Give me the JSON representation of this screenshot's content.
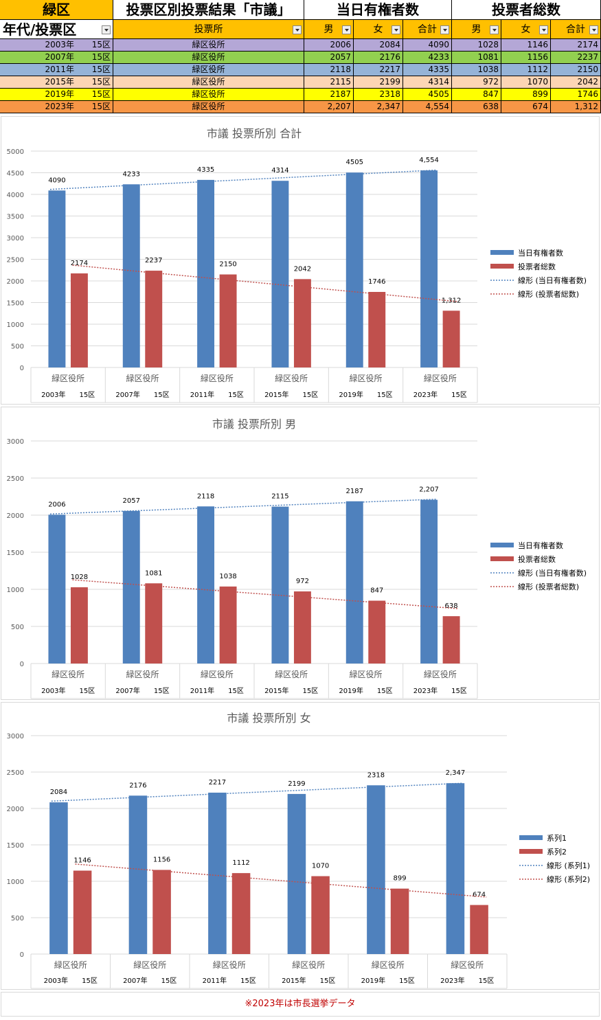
{
  "sheet": {
    "header_row1": {
      "district": "緑区",
      "title": "投票区別投票結果「市議」",
      "voters_group": "当日有権者数",
      "turnout_group": "投票者総数"
    },
    "header_row2": {
      "year_col": "年代/投票区",
      "station_col": "投票所",
      "men": "男",
      "women": "女",
      "total": "合計"
    },
    "row_colors": [
      "#b4a7d6",
      "#92d050",
      "#95b3d7",
      "#fcd5b4",
      "#ffff00",
      "#f79646"
    ],
    "rows": [
      {
        "year": "2003年",
        "district": "15区",
        "station": "緑区役所",
        "v_m": "2006",
        "v_f": "2084",
        "v_t": "4090",
        "t_m": "1028",
        "t_f": "1146",
        "t_t": "2174"
      },
      {
        "year": "2007年",
        "district": "15区",
        "station": "緑区役所",
        "v_m": "2057",
        "v_f": "2176",
        "v_t": "4233",
        "t_m": "1081",
        "t_f": "1156",
        "t_t": "2237"
      },
      {
        "year": "2011年",
        "district": "15区",
        "station": "緑区役所",
        "v_m": "2118",
        "v_f": "2217",
        "v_t": "4335",
        "t_m": "1038",
        "t_f": "1112",
        "t_t": "2150"
      },
      {
        "year": "2015年",
        "district": "15区",
        "station": "緑区役所",
        "v_m": "2115",
        "v_f": "2199",
        "v_t": "4314",
        "t_m": "972",
        "t_f": "1070",
        "t_t": "2042"
      },
      {
        "year": "2019年",
        "district": "15区",
        "station": "緑区役所",
        "v_m": "2187",
        "v_f": "2318",
        "v_t": "4505",
        "t_m": "847",
        "t_f": "899",
        "t_t": "1746"
      },
      {
        "year": "2023年",
        "district": "15区",
        "station": "緑区役所",
        "v_m": "2,207",
        "v_f": "2,347",
        "v_t": "4,554",
        "t_m": "638",
        "t_f": "674",
        "t_t": "1,312"
      }
    ]
  },
  "colors": {
    "series1": "#4f81bd",
    "series2": "#c0504d",
    "header_amber": "#ffc000"
  },
  "chart_data": [
    {
      "type": "bar",
      "title": "市議  投票所別  合計",
      "categories": [
        "緑区役所",
        "緑区役所",
        "緑区役所",
        "緑区役所",
        "緑区役所",
        "緑区役所"
      ],
      "categories_sub": [
        "2003年　　15区",
        "2007年　　15区",
        "2011年　　15区",
        "2015年　　15区",
        "2019年　　15区",
        "2023年　　15区"
      ],
      "series": [
        {
          "name": "当日有権者数",
          "values": [
            4090,
            4233,
            4335,
            4314,
            4505,
            4554
          ],
          "labels": [
            "4090",
            "4233",
            "4335",
            "4314",
            "4505",
            "4,554"
          ]
        },
        {
          "name": "投票者総数",
          "values": [
            2174,
            2237,
            2150,
            2042,
            1746,
            1312
          ],
          "labels": [
            "2174",
            "2237",
            "2150",
            "2042",
            "1746",
            "1,312"
          ]
        }
      ],
      "trendlines": [
        "線形 (当日有権者数)",
        "線形 (投票者総数)"
      ],
      "ylim": [
        0,
        5000
      ],
      "yticks": [
        0,
        500,
        1000,
        1500,
        2000,
        2500,
        3000,
        3500,
        4000,
        4500,
        5000
      ],
      "grid": true,
      "legend": "right"
    },
    {
      "type": "bar",
      "title": "市議  投票所別  男",
      "categories": [
        "緑区役所",
        "緑区役所",
        "緑区役所",
        "緑区役所",
        "緑区役所",
        "緑区役所"
      ],
      "categories_sub": [
        "2003年　　15区",
        "2007年　　15区",
        "2011年　　15区",
        "2015年　　15区",
        "2019年　　15区",
        "2023年　　15区"
      ],
      "series": [
        {
          "name": "当日有権者数",
          "values": [
            2006,
            2057,
            2118,
            2115,
            2187,
            2207
          ],
          "labels": [
            "2006",
            "2057",
            "2118",
            "2115",
            "2187",
            "2,207"
          ]
        },
        {
          "name": "投票者総数",
          "values": [
            1028,
            1081,
            1038,
            972,
            847,
            638
          ],
          "labels": [
            "1028",
            "1081",
            "1038",
            "972",
            "847",
            "638"
          ]
        }
      ],
      "trendlines": [
        "線形 (当日有権者数)",
        "線形 (投票者総数)"
      ],
      "ylim": [
        0,
        3000
      ],
      "yticks": [
        0,
        500,
        1000,
        1500,
        2000,
        2500,
        3000
      ],
      "grid": true,
      "legend": "right"
    },
    {
      "type": "bar",
      "title": "市議  投票所別  女",
      "categories": [
        "緑区役所",
        "緑区役所",
        "緑区役所",
        "緑区役所",
        "緑区役所",
        "緑区役所"
      ],
      "categories_sub": [
        "2003年　　15区",
        "2007年　　15区",
        "2011年　　15区",
        "2015年　　15区",
        "2019年　　15区",
        "2023年　　15区"
      ],
      "series": [
        {
          "name": "系列1",
          "values": [
            2084,
            2176,
            2217,
            2199,
            2318,
            2347
          ],
          "labels": [
            "2084",
            "2176",
            "2217",
            "2199",
            "2318",
            "2,347"
          ]
        },
        {
          "name": "系列2",
          "values": [
            1146,
            1156,
            1112,
            1070,
            899,
            674
          ],
          "labels": [
            "1146",
            "1156",
            "1112",
            "1070",
            "899",
            "674"
          ]
        }
      ],
      "trendlines": [
        "線形 (系列1)",
        "線形 (系列2)"
      ],
      "ylim": [
        0,
        3000
      ],
      "yticks": [
        0,
        500,
        1000,
        1500,
        2000,
        2500,
        3000
      ],
      "grid": true,
      "legend": "right"
    }
  ],
  "note": "※2023年は市長選挙データ"
}
